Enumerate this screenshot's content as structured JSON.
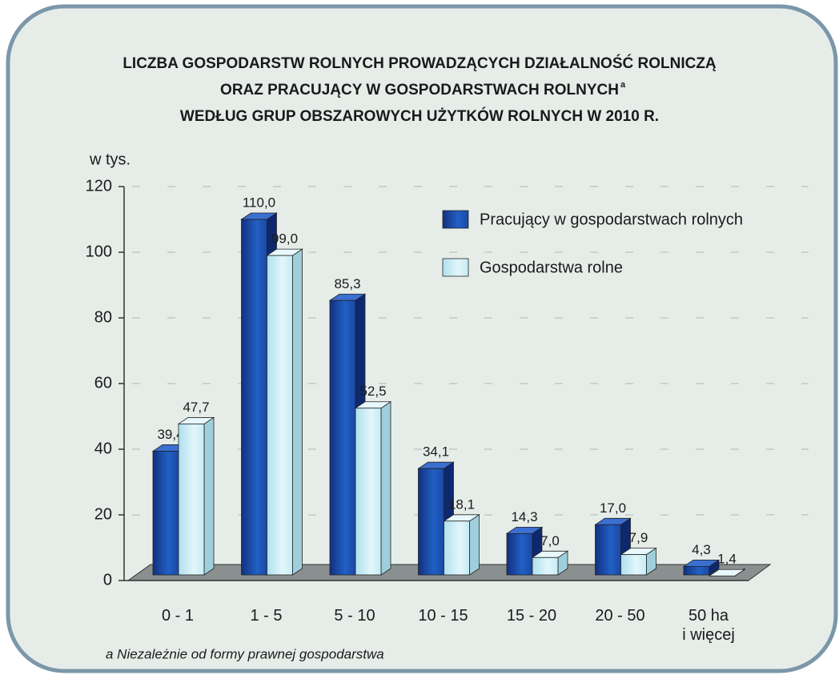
{
  "chart_data": {
    "type": "bar3d",
    "title": [
      "LICZBA GOSPODARSTW ROLNYCH PROWADZĄCYCH DZIAŁALNOŚĆ ROLNICZĄ",
      "ORAZ PRACUJĄCY W GOSPODARSTWACH ROLNYCH",
      "WEDŁUG GRUP OBSZAROWYCH UŻYTKÓW ROLNYCH W 2010 R."
    ],
    "title_note": "a",
    "y_label": "w tys.",
    "footnote": "a Niezależnie od formy prawnej gospodarstwa",
    "categories": [
      "0 - 1",
      "1 - 5",
      "5 - 10",
      "10 - 15",
      "15 - 20",
      "20 - 50",
      "50 ha\ni więcej"
    ],
    "series": [
      {
        "name": "Pracujący w gospodarstwach rolnych",
        "color": "#1f4fae",
        "values": [
          39.4,
          110.0,
          85.3,
          34.1,
          14.3,
          17.0,
          4.3
        ],
        "value_labels": [
          "39,4",
          "110,0",
          "85,3",
          "34,1",
          "14,3",
          "17,0",
          "4,3"
        ]
      },
      {
        "name": "Gospodarstwa rolne",
        "color": "#c9edf6",
        "values": [
          47.7,
          99.0,
          52.5,
          18.1,
          7.0,
          7.9,
          1.4
        ],
        "value_labels": [
          "47,7",
          "99,0",
          "52,5",
          "18,1",
          "7,0",
          "7,9",
          "1,4"
        ]
      }
    ],
    "ylim": [
      0,
      120
    ],
    "yticks": [
      0,
      20,
      40,
      60,
      80,
      100,
      120
    ],
    "grid": true,
    "legend": "top-right"
  }
}
